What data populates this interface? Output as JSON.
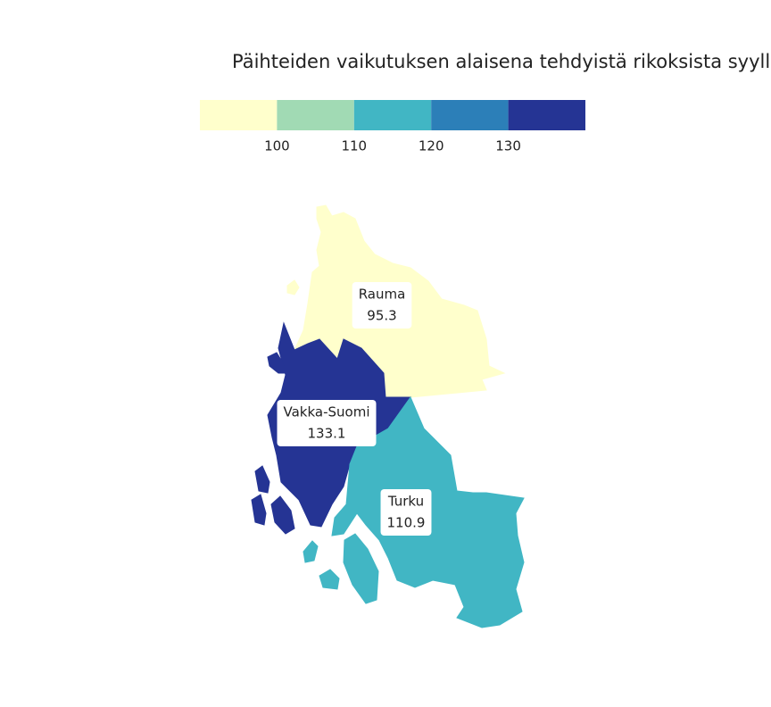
{
  "chart_data": {
    "type": "choropleth",
    "title": "Päihteiden vaikutuksen alaisena tehdyistä rikoksista syyllis",
    "legend": {
      "lim": [
        90,
        140
      ],
      "ticks": [
        100,
        110,
        120,
        130
      ],
      "colors": [
        "#ffffcc",
        "#a1dab4",
        "#41b6c4",
        "#2c7fb8",
        "#253494"
      ]
    },
    "regions": [
      {
        "name": "Rauma",
        "value": 95.3
      },
      {
        "name": "Vakka-Suomi",
        "value": 133.1
      },
      {
        "name": "Turku",
        "value": 110.9
      }
    ]
  }
}
